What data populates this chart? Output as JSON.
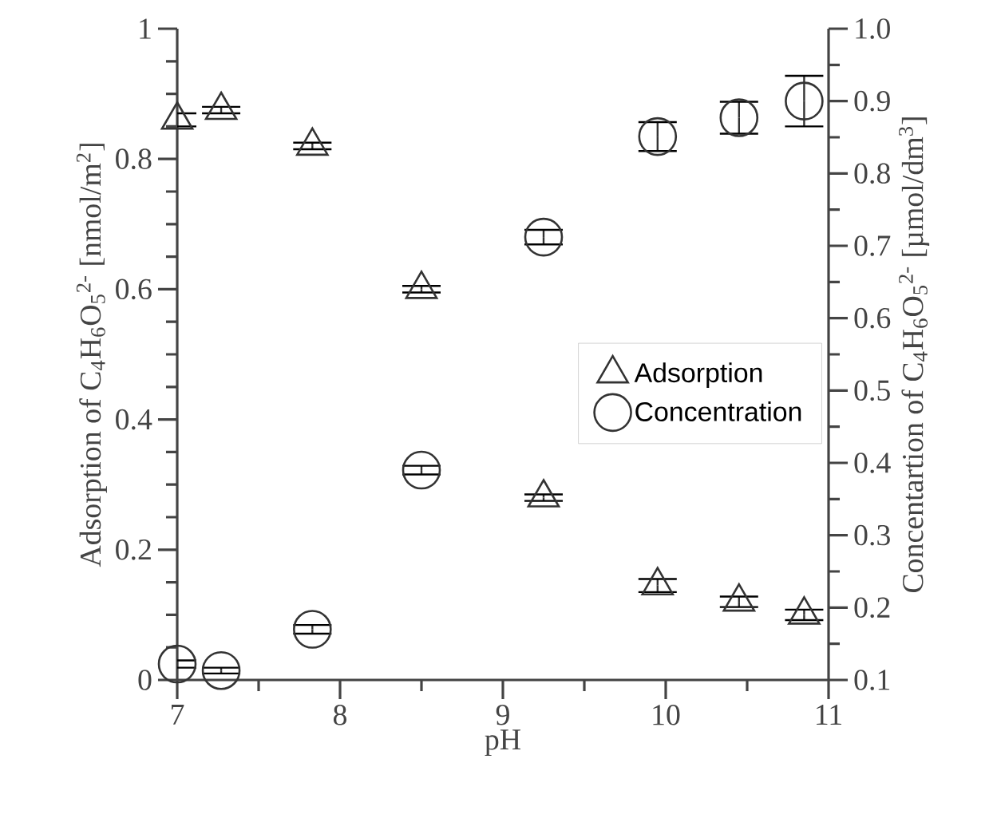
{
  "chart_data": {
    "type": "scatter",
    "xlabel": "pH",
    "ylabel": "Adsorption of C$_{4}$H$_{6}$O$_{5}$$^{2-}$ [nmol/m$^{2}$]",
    "y2label": "Concentartion of C$_{4}$H$_{6}$O$_{5}$$^{2-}$ [µmol/dm$^{3}$]",
    "xlim": [
      7,
      11
    ],
    "xticks": [
      7,
      {
        "value": 7.5,
        "label": null
      },
      8,
      {
        "value": 8.5,
        "label": null
      },
      9,
      {
        "value": 9.5,
        "label": null
      },
      10,
      {
        "value": 10.5,
        "label": null
      },
      11
    ],
    "ylim": [
      0,
      1
    ],
    "yticks": [
      0,
      {
        "value": 0.05,
        "label": null
      },
      {
        "value": 0.1,
        "label": null
      },
      {
        "value": 0.15,
        "label": null
      },
      0.2,
      {
        "value": 0.25,
        "label": null
      },
      {
        "value": 0.3,
        "label": null
      },
      {
        "value": 0.35,
        "label": null
      },
      0.4,
      {
        "value": 0.45,
        "label": null
      },
      {
        "value": 0.5,
        "label": null
      },
      {
        "value": 0.55,
        "label": null
      },
      0.6,
      {
        "value": 0.65,
        "label": null
      },
      {
        "value": 0.7,
        "label": null
      },
      {
        "value": 0.75,
        "label": null
      },
      0.8,
      {
        "value": 0.85,
        "label": null
      },
      {
        "value": 0.9,
        "label": null
      },
      {
        "value": 0.95,
        "label": null
      },
      1
    ],
    "y2lim": [
      0.1,
      1.0
    ],
    "y2ticks": [
      0.1,
      {
        "value": 0.15,
        "label": null
      },
      0.2,
      {
        "value": 0.25,
        "label": null
      },
      0.3,
      {
        "value": 0.35,
        "label": null
      },
      0.4,
      {
        "value": 0.45,
        "label": null
      },
      0.5,
      {
        "value": 0.55,
        "label": null
      },
      0.6,
      {
        "value": 0.65,
        "label": null
      },
      0.7,
      {
        "value": 0.75,
        "label": null
      },
      0.8,
      {
        "value": 0.85,
        "label": null
      },
      0.9,
      {
        "value": 0.95,
        "label": null
      },
      {
        "value": 1.0,
        "label": "1.0"
      }
    ],
    "legend": "right",
    "grid": false,
    "series": [
      {
        "name": "Adsorption",
        "color": "#333333",
        "marker": "triangle",
        "x": [
          7.0,
          7.27,
          7.83,
          8.5,
          9.25,
          9.95,
          10.45,
          10.85
        ],
        "values": [
          0.86,
          0.875,
          0.82,
          0.6,
          0.28,
          0.145,
          0.12,
          0.1
        ],
        "errors": [
          0.01,
          0.005,
          0.005,
          0.005,
          0.005,
          0.01,
          0.008,
          0.008
        ]
      },
      {
        "name": "Concentration",
        "color": "#333333",
        "marker": "circle",
        "axis": "y2",
        "x": [
          7.0,
          7.27,
          7.83,
          8.5,
          9.25,
          9.95,
          10.45,
          10.85
        ],
        "values": [
          0.122,
          0.113,
          0.17,
          0.39,
          0.712,
          0.851,
          0.877,
          0.9
        ],
        "errors": [
          0.005,
          0.004,
          0.006,
          0.006,
          0.01,
          0.02,
          0.022,
          0.035
        ]
      }
    ]
  }
}
